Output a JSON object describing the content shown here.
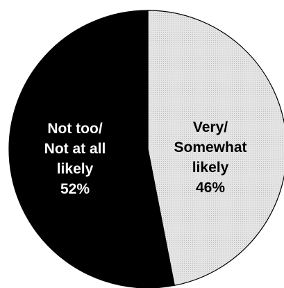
{
  "chart_data": {
    "type": "pie",
    "title": "",
    "slices": [
      {
        "label_lines": [
          "Very/",
          "Somewhat",
          "likely"
        ],
        "value": 46,
        "value_label": "46%",
        "color": "#dcdcdc",
        "text_color": "#000000"
      },
      {
        "label_lines": [
          "Not too/",
          "Not at all",
          "likely"
        ],
        "value": 52,
        "value_label": "52%",
        "color": "#000000",
        "text_color": "#ffffff"
      }
    ],
    "start_angle": "12 o'clock",
    "direction": "clockwise",
    "outline_color": "#000000",
    "legend": "none"
  }
}
